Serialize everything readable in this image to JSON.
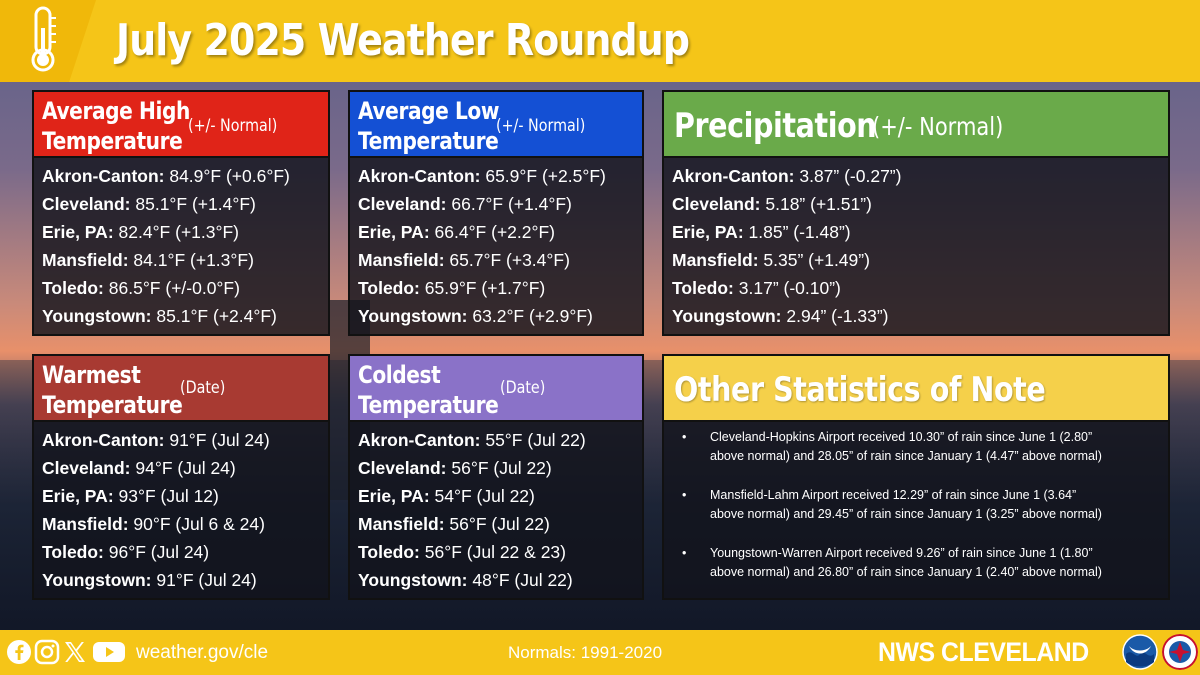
{
  "title": "July 2025 Weather Roundup",
  "panels": {
    "avg_high": {
      "title_line1": "Average High",
      "title_line2": "Temperature",
      "subtitle": "(+/- Normal)",
      "color": "#e02418",
      "rows": [
        {
          "city": "Akron-Canton:",
          "value": " 84.9°F (+0.6°F)"
        },
        {
          "city": "Cleveland:",
          "value": " 85.1°F (+1.4°F)"
        },
        {
          "city": "Erie, PA:",
          "value": " 82.4°F (+1.3°F)"
        },
        {
          "city": "Mansfield:",
          "value": " 84.1°F (+1.3°F)"
        },
        {
          "city": "Toledo:",
          "value": " 86.5°F (+/-0.0°F)"
        },
        {
          "city": "Youngstown:",
          "value": " 85.1°F (+2.4°F)"
        }
      ]
    },
    "avg_low": {
      "title_line1": "Average Low",
      "title_line2": "Temperature",
      "subtitle": "(+/- Normal)",
      "color": "#1450d4",
      "rows": [
        {
          "city": "Akron-Canton:",
          "value": " 65.9°F (+2.5°F)"
        },
        {
          "city": "Cleveland:",
          "value": " 66.7°F (+1.4°F)"
        },
        {
          "city": "Erie, PA:",
          "value": " 66.4°F (+2.2°F)"
        },
        {
          "city": "Mansfield:",
          "value": " 65.7°F (+3.4°F)"
        },
        {
          "city": "Toledo:",
          "value": " 65.9°F (+1.7°F)"
        },
        {
          "city": "Youngstown:",
          "value": " 63.2°F (+2.9°F)"
        }
      ]
    },
    "precip": {
      "title_line1": "Precipitation",
      "subtitle": "(+/- Normal)",
      "color": "#6aaa4a",
      "rows": [
        {
          "city": "Akron-Canton:",
          "value": " 3.87” (-0.27”)"
        },
        {
          "city": "Cleveland:",
          "value": " 5.18” (+1.51”)"
        },
        {
          "city": "Erie, PA:",
          "value": " 1.85” (-1.48”)"
        },
        {
          "city": "Mansfield:",
          "value": " 5.35” (+1.49”)"
        },
        {
          "city": "Toledo:",
          "value": " 3.17” (-0.10”)"
        },
        {
          "city": "Youngstown:",
          "value": " 2.94” (-1.33”)"
        }
      ]
    },
    "warmest": {
      "title_line1": "Warmest",
      "title_line2": "Temperature",
      "subtitle": "(Date)",
      "color": "#a83a32",
      "rows": [
        {
          "city": "Akron-Canton:",
          "value": " 91°F (Jul 24)"
        },
        {
          "city": "Cleveland:",
          "value": " 94°F (Jul 24)"
        },
        {
          "city": "Erie, PA:",
          "value": " 93°F (Jul 12)"
        },
        {
          "city": "Mansfield:",
          "value": " 90°F (Jul 6 & 24)"
        },
        {
          "city": "Toledo:",
          "value": " 96°F (Jul 24)"
        },
        {
          "city": "Youngstown:",
          "value": " 91°F (Jul 24)"
        }
      ]
    },
    "coldest": {
      "title_line1": "Coldest",
      "title_line2": "Temperature",
      "subtitle": "(Date)",
      "color": "#8a72c8",
      "rows": [
        {
          "city": "Akron-Canton:",
          "value": " 55°F (Jul 22)"
        },
        {
          "city": "Cleveland:",
          "value": " 56°F (Jul 22)"
        },
        {
          "city": "Erie, PA:",
          "value": " 54°F (Jul 22)"
        },
        {
          "city": "Mansfield:",
          "value": " 56°F (Jul 22)"
        },
        {
          "city": "Toledo:",
          "value": " 56°F (Jul 22 & 23)"
        },
        {
          "city": "Youngstown:",
          "value": " 48°F (Jul 22)"
        }
      ]
    },
    "other": {
      "title_line1": "Other Statistics of Note",
      "color": "#f5d04a",
      "bullet_char": "•",
      "bullets": [
        {
          "line1": "Cleveland-Hopkins Airport received 10.30” of rain since June 1 (2.80”",
          "line2": "above normal) and 28.05” of rain since January 1 (4.47” above normal)"
        },
        {
          "line1": "Mansfield-Lahm Airport received 12.29” of rain since June 1 (3.64”",
          "line2": "above normal) and 29.45” of rain since January 1 (3.25” above normal)"
        },
        {
          "line1": "Youngstown-Warren Airport received 9.26” of rain since June 1 (1.80”",
          "line2": "above normal) and 26.80” of rain since January 1 (2.40” above normal)"
        }
      ]
    }
  },
  "footer": {
    "link": "weather.gov/cle",
    "normals": "Normals: 1991-2020",
    "brand": "NWS CLEVELAND",
    "social_icons": [
      "facebook-icon",
      "instagram-icon",
      "x-icon",
      "youtube-icon"
    ],
    "accent": "#f5c518"
  }
}
